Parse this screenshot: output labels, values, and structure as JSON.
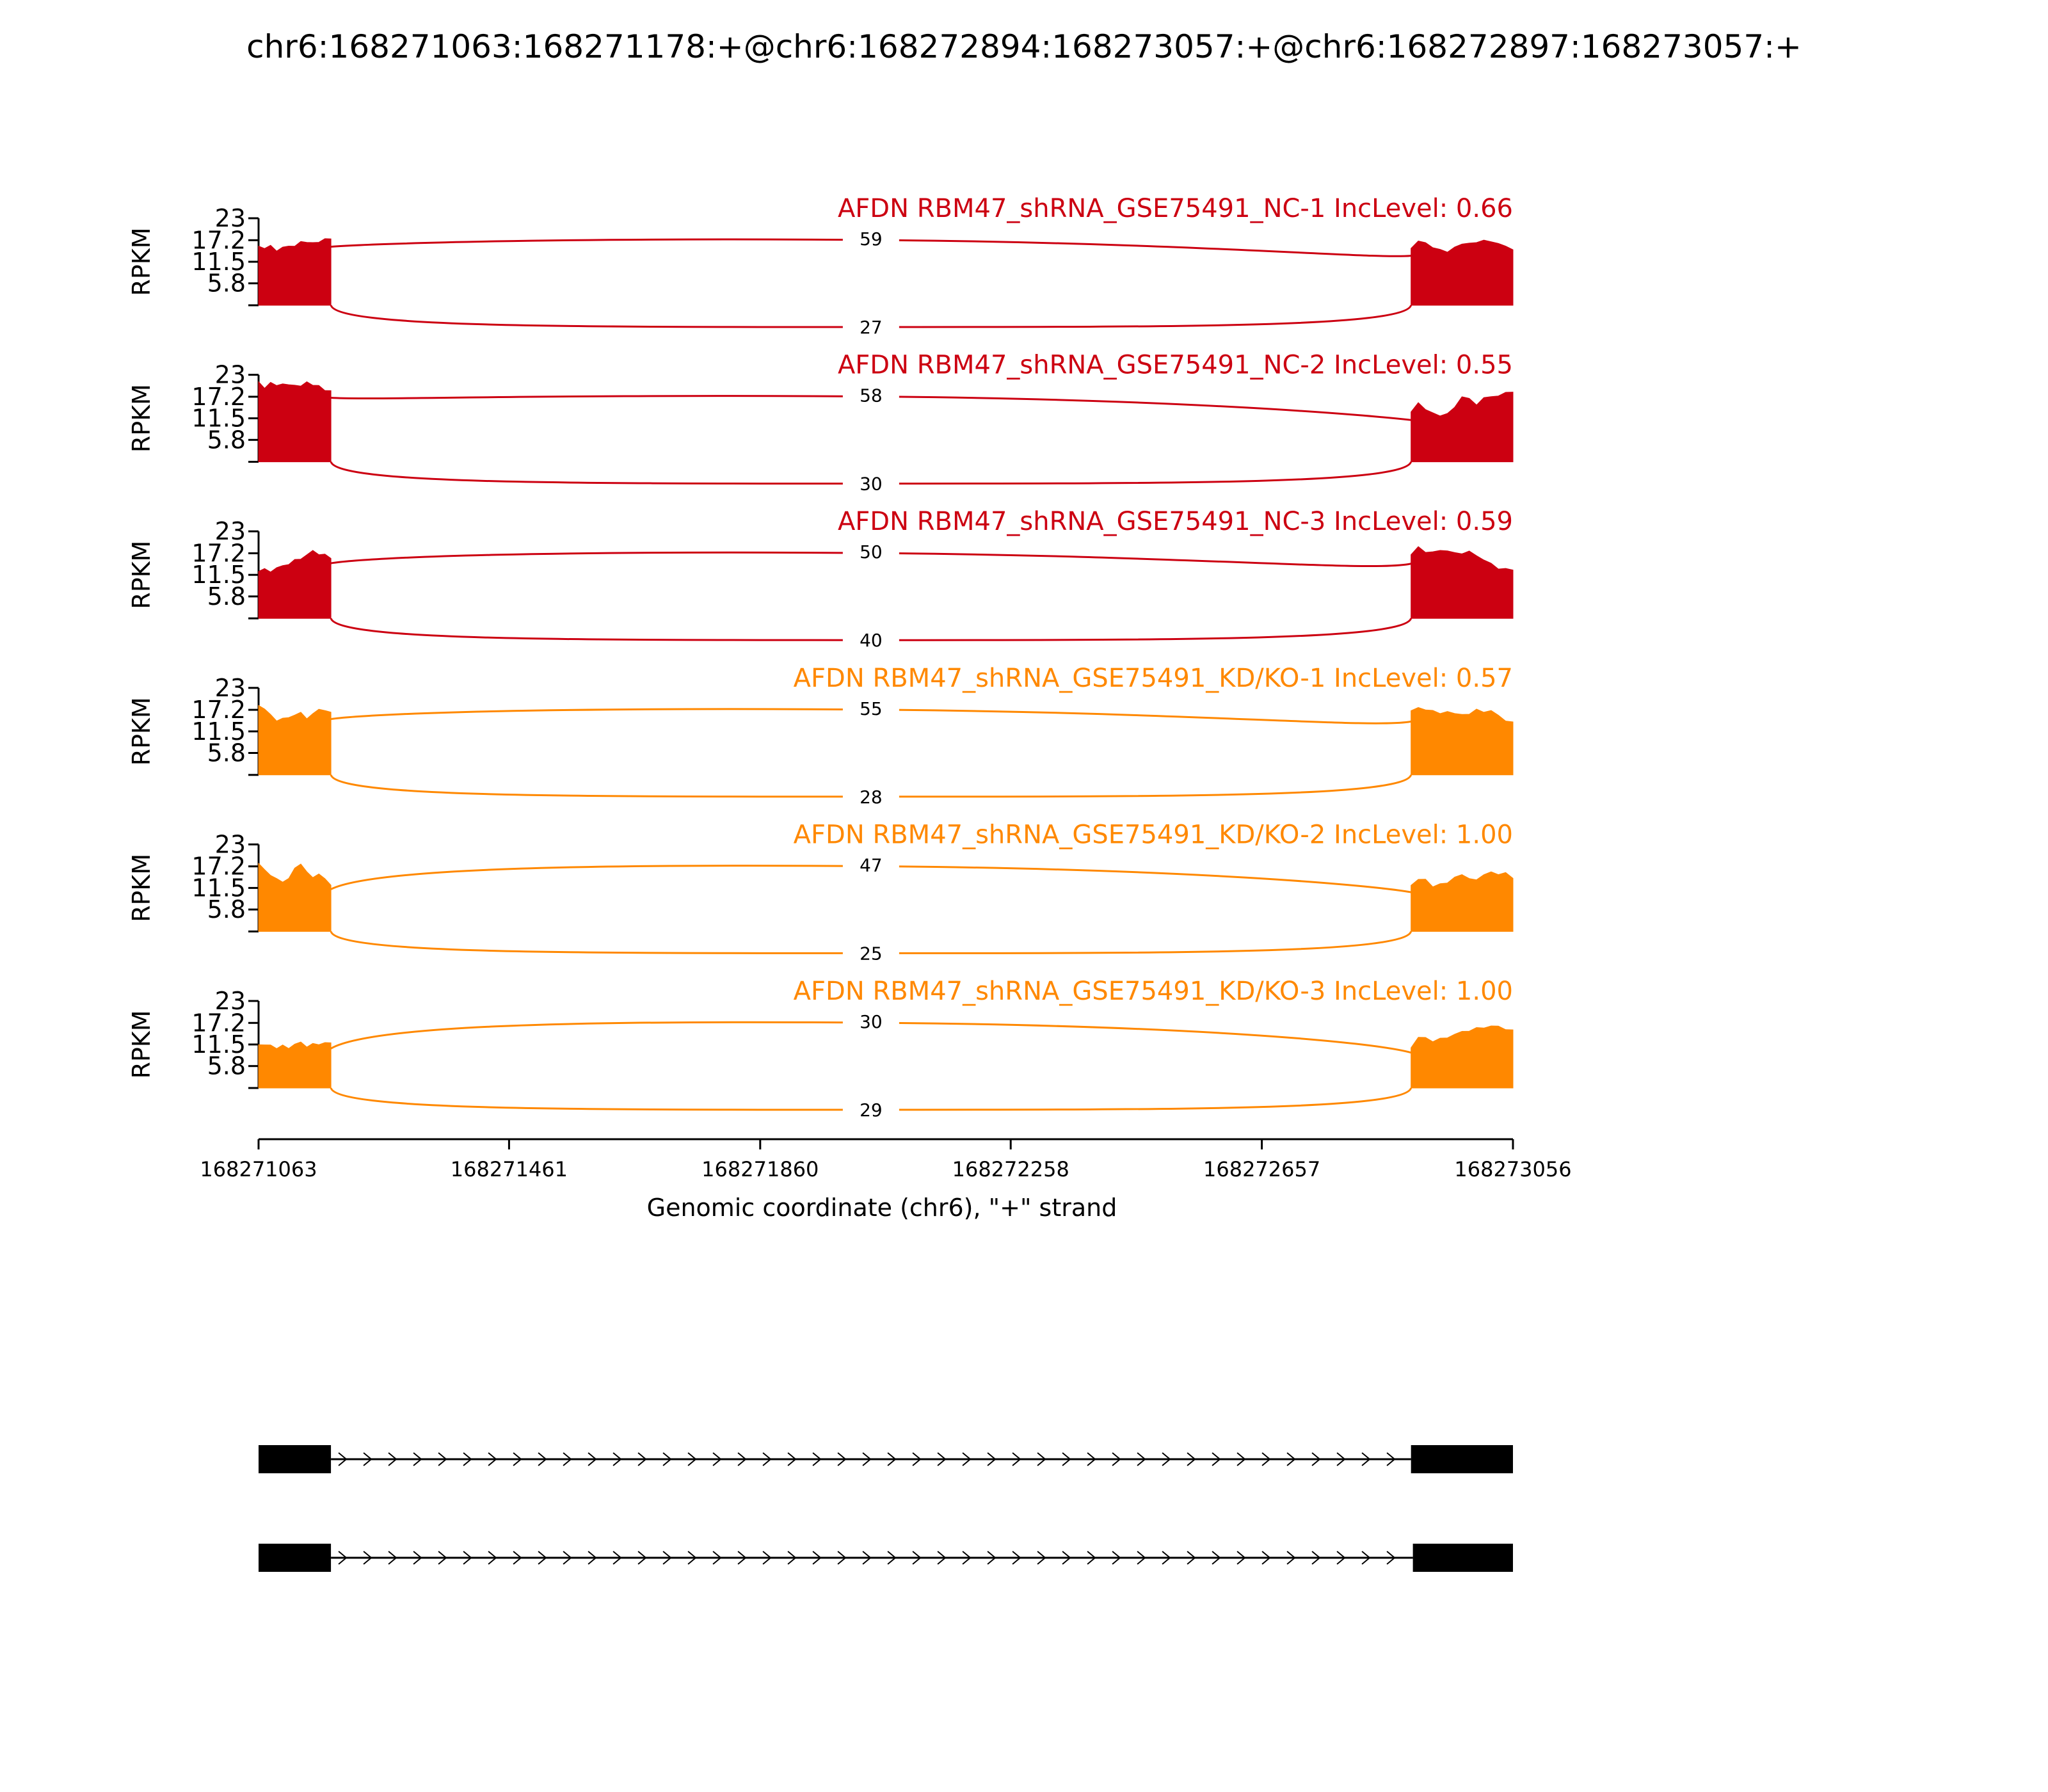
{
  "chart_data": {
    "type": "sashimi",
    "title": "chr6:168271063:168271178:+@chr6:168272894:168273057:+@chr6:168272897:168273057:+",
    "ylabel": "RPKM",
    "xlabel": "Genomic coordinate (chr6), \"+\" strand",
    "xlim": [
      168271063,
      168273056
    ],
    "x_ticks": [
      "168271063",
      "168271461",
      "168271860",
      "168272258",
      "168272657",
      "168273056"
    ],
    "y_ticks": [
      "23",
      "17.2",
      "11.5",
      "5.8"
    ],
    "ylim": [
      0,
      23
    ],
    "exons": [
      {
        "start": 168271063,
        "end": 168271178
      },
      {
        "start": 168272894,
        "end": 168273056
      }
    ],
    "colors": {
      "NC": "#cc0011",
      "KD": "#ff8800",
      "text": "#000000"
    },
    "tracks": [
      {
        "label": "AFDN RBM47_shRNA_GSE75491_NC-1 IncLevel: 0.66",
        "group": "NC",
        "junction_upper": "59",
        "junction_lower": "27",
        "left_coverage": [
          16,
          15,
          15.5,
          14.5,
          15.2,
          16,
          15.6,
          16.5,
          16.8,
          16.4,
          17,
          17.6,
          17.2
        ],
        "right_coverage": [
          15.4,
          17,
          16.2,
          15.4,
          14.6,
          14.4,
          15.4,
          15.8,
          16.6,
          16.4,
          17.6,
          16.8,
          16,
          15.8,
          14.5
        ]
      },
      {
        "label": "AFDN RBM47_shRNA_GSE75491_NC-2 IncLevel: 0.55",
        "group": "NC",
        "junction_upper": "58",
        "junction_lower": "30",
        "left_coverage": [
          21,
          19.8,
          21,
          19.8,
          20.8,
          20.2,
          20.6,
          20,
          20.8,
          20.4,
          20,
          19.2,
          18.8
        ],
        "right_coverage": [
          13,
          16,
          13.8,
          12.6,
          12.3,
          12.6,
          14.8,
          17.2,
          16.4,
          15.2,
          16.8,
          17.6,
          17.4,
          18,
          18.6
        ]
      },
      {
        "label": "AFDN RBM47_shRNA_GSE75491_NC-3 IncLevel: 0.59",
        "group": "NC",
        "junction_upper": "50",
        "junction_lower": "40",
        "left_coverage": [
          12.6,
          13,
          12.6,
          13.4,
          13.6,
          14.4,
          15.4,
          16,
          16.8,
          17.6,
          17,
          16.8,
          16.2
        ],
        "right_coverage": [
          17,
          18.8,
          17.8,
          17.6,
          17.6,
          18,
          17.2,
          17.4,
          17.8,
          16.2,
          15.6,
          14.4,
          13.4,
          13.2,
          12.4
        ]
      },
      {
        "label": "AFDN RBM47_shRNA_GSE75491_KD/KO-1 IncLevel: 0.57",
        "group": "KD",
        "junction_upper": "55",
        "junction_lower": "28",
        "left_coverage": [
          18,
          17.6,
          15.8,
          14.6,
          15,
          14.8,
          16,
          16.4,
          15.2,
          16.2,
          17,
          17.2,
          16.4
        ],
        "right_coverage": [
          16.6,
          18,
          17,
          17.4,
          16.2,
          16.4,
          16.4,
          15.8,
          16.4,
          17.4,
          16.2,
          17.2,
          15.6,
          14.6,
          14
        ],
        "right_cap": 17.4
      },
      {
        "label": "AFDN RBM47_shRNA_GSE75491_KD/KO-2 IncLevel: 1.00",
        "group": "KD",
        "junction_upper": "47",
        "junction_lower": "25",
        "left_coverage": [
          18,
          16,
          15,
          13.8,
          13.4,
          14,
          16.4,
          18,
          15.6,
          14.6,
          15.2,
          13.6,
          12.4
        ],
        "right_coverage": [
          12.2,
          13.4,
          14,
          11.6,
          13,
          12.8,
          14,
          15.2,
          13.8,
          14,
          15,
          15.4,
          15.2,
          15.4,
          14.4
        ]
      },
      {
        "label": "AFDN RBM47_shRNA_GSE75491_KD/KO-3 IncLevel: 1.00",
        "group": "KD",
        "junction_upper": "30",
        "junction_lower": "29",
        "left_coverage": [
          11.8,
          11.4,
          11,
          10.6,
          11.2,
          10.8,
          11.6,
          11.8,
          11,
          11.6,
          11.8,
          12,
          11.6
        ],
        "right_coverage": [
          11,
          13.4,
          13,
          12.4,
          13,
          13.6,
          14.2,
          14.6,
          15.2,
          15.8,
          16.2,
          16.4,
          16,
          15.6,
          15.2
        ]
      }
    ],
    "gene_models": [
      {
        "exons": [
          [
            168271063,
            168271178
          ],
          [
            168272894,
            168273056
          ]
        ]
      },
      {
        "exons": [
          [
            168271063,
            168271178
          ],
          [
            168272897,
            168273056
          ]
        ]
      }
    ]
  }
}
